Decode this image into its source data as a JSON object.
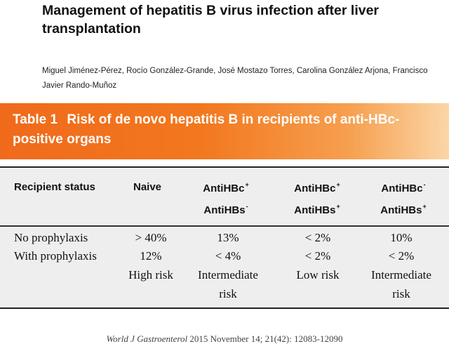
{
  "paper": {
    "title": "Management of hepatitis B virus infection after liver transplantation",
    "authors": "Miguel Jiménez-Pérez, Rocío González-Grande, José Mostazo Torres, Carolina González Arjona, Francisco Javier Rando-Muñoz"
  },
  "table": {
    "number": "Table 1",
    "caption": "Risk of de novo hepatitis B in recipients of anti-HBc-positive organs",
    "header": {
      "status": "Recipient status",
      "naive": "Naive",
      "col3_line1": "AntiHBc",
      "col3_line1_sup": "+",
      "col3_line2": "AntiHBs",
      "col3_line2_sup": "-",
      "col4_line1": "AntiHBc",
      "col4_line1_sup": "+",
      "col4_line2": "AntiHBs",
      "col4_line2_sup": "+",
      "col5_line1": "AntiHBc",
      "col5_line1_sup": "-",
      "col5_line2": "AntiHBs",
      "col5_line2_sup": "+"
    },
    "rows": [
      {
        "label": "No prophylaxis",
        "naive": "> 40%",
        "c3": "13%",
        "c4": "< 2%",
        "c5": "10%"
      },
      {
        "label": "With prophylaxis",
        "naive": "12%",
        "c3": "< 4%",
        "c4": "< 2%",
        "c5": "< 2%"
      }
    ],
    "risk": {
      "naive": "High risk",
      "c3_line1": "Intermediate",
      "c3_line2": "risk",
      "c4": "Low risk",
      "c5_line1": "Intermediate",
      "c5_line2": "risk"
    }
  },
  "footer": {
    "journal": "World J Gastroenterol",
    "citation": "2015 November 14; 21(42): 12083-12090"
  },
  "colors": {
    "caption_bar_start": "#f06a1c",
    "caption_bar_end": "#fbd6a8",
    "table_background": "#eeeeee"
  }
}
